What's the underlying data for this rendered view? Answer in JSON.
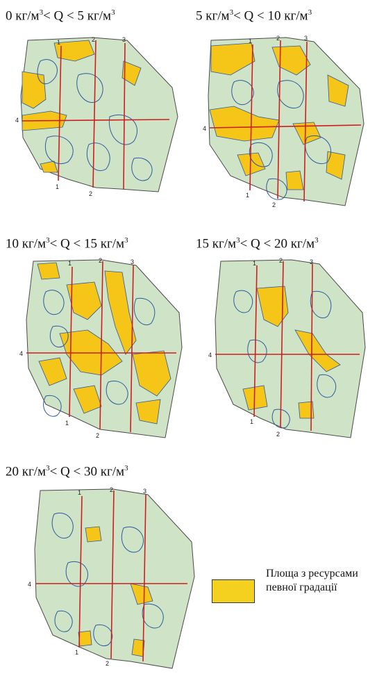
{
  "panels": [
    {
      "title_prefix": "0 кг/м",
      "title_sup1": "3",
      "title_middle": "< Q < 5 кг/м",
      "title_sup2": "3",
      "grid_labels": {
        "top1": "1",
        "top2": "2",
        "top3": "3",
        "left4": "4",
        "bottom1": "1",
        "bottom2": "2"
      }
    },
    {
      "title_prefix": "5 кг/м",
      "title_sup1": "3",
      "title_middle": "< Q < 10 кг/м",
      "title_sup2": "3",
      "grid_labels": {
        "top1": "1",
        "top2": "2",
        "top3": "3",
        "left4": "4",
        "bottom1": "1",
        "bottom2": "2"
      }
    },
    {
      "title_prefix": "10 кг/м",
      "title_sup1": "3",
      "title_middle": "< Q < 15 кг/м",
      "title_sup2": "3",
      "grid_labels": {
        "top1": "1",
        "top2": "2",
        "top3": "3",
        "left4": "4",
        "bottom1": "1",
        "bottom2": "2"
      }
    },
    {
      "title_prefix": "15 кг/м",
      "title_sup1": "3",
      "title_middle": "< Q < 20 кг/м",
      "title_sup2": "3",
      "grid_labels": {
        "top1": "1",
        "top2": "2",
        "top3": "3",
        "left4": "4",
        "bottom1": "1",
        "bottom2": "2"
      }
    },
    {
      "title_prefix": "20 кг/м",
      "title_sup1": "3",
      "title_middle": "< Q < 30 кг/м",
      "title_sup2": "3",
      "grid_labels": {
        "top1": "1",
        "top2": "2",
        "top3": "3",
        "left4": "4",
        "bottom1": "1",
        "bottom2": "2"
      }
    }
  ],
  "legend": {
    "line1": "Площа з ресурсами",
    "line2": "певної градації",
    "swatch_color": "#f5d11f"
  },
  "colors": {
    "land": "#cfe3c6",
    "resource_area": "#f5c518",
    "contour": "#2c5aa0",
    "grid_line": "#cc1f1f"
  }
}
